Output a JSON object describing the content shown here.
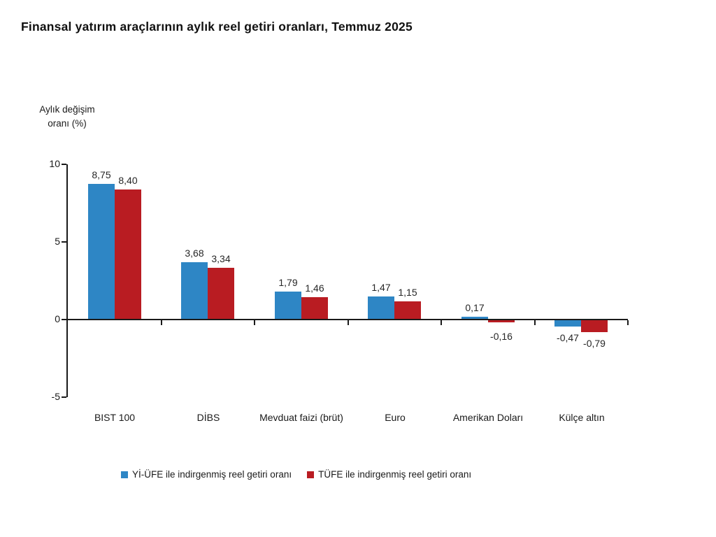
{
  "title": "Finansal yatırım araçlarının aylık reel getiri oranları, Temmuz 2025",
  "chart_data": {
    "type": "bar",
    "title": "Finansal yatırım araçlarının aylık reel getiri oranları, Temmuz 2025",
    "ylabel_lines": [
      "Aylık değişim",
      "oranı (%)"
    ],
    "xlabel": "",
    "categories": [
      "BIST 100",
      "DİBS",
      "Mevduat faizi (brüt)",
      "Euro",
      "Amerikan Doları",
      "Külçe altın"
    ],
    "series": [
      {
        "name": "Yİ-ÜFE ile indirgenmiş reel getiri oranı",
        "color": "#2E86C5",
        "values": [
          8.75,
          3.68,
          1.79,
          1.47,
          0.17,
          -0.47
        ],
        "value_labels": [
          "8,75",
          "3,68",
          "1,79",
          "1,47",
          "0,17",
          "-0,47"
        ]
      },
      {
        "name": "TÜFE ile indirgenmiş reel getiri oranı",
        "color": "#B91C22",
        "values": [
          8.4,
          3.34,
          1.46,
          1.15,
          -0.16,
          -0.79
        ],
        "value_labels": [
          "8,40",
          "3,34",
          "1,46",
          "1,15",
          "-0,16",
          "-0,79"
        ]
      }
    ],
    "y_ticks": [
      10,
      5,
      0,
      -5
    ],
    "ylim": [
      -5,
      10
    ],
    "grid": false,
    "legend_position": "bottom",
    "decimal_separator": ","
  }
}
